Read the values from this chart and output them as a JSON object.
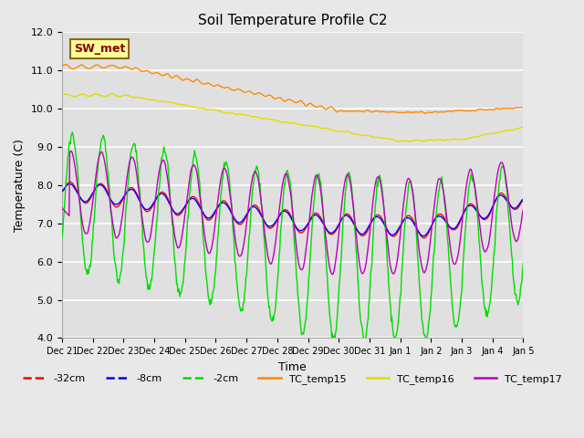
{
  "title": "Soil Temperature Profile C2",
  "xlabel": "Time",
  "ylabel": "Temperature (C)",
  "ylim": [
    4.0,
    12.0
  ],
  "yticks": [
    4.0,
    5.0,
    6.0,
    7.0,
    8.0,
    9.0,
    10.0,
    11.0,
    12.0
  ],
  "xtick_labels": [
    "Dec 21",
    "Dec 22",
    "Dec 23",
    "Dec 24",
    "Dec 25",
    "Dec 26",
    "Dec 27",
    "Dec 28",
    "Dec 29",
    "Dec 30",
    "Dec 31",
    "Jan 1",
    "Jan 2",
    "Jan 3",
    "Jan 4",
    "Jan 5"
  ],
  "legend_labels": [
    "-32cm",
    "-8cm",
    "-2cm",
    "TC_temp15",
    "TC_temp16",
    "TC_temp17"
  ],
  "line_colors": [
    "#ff0000",
    "#0000ff",
    "#00dd00",
    "#ff8800",
    "#dddd00",
    "#bb00bb"
  ],
  "annotation_text": "SW_met",
  "annotation_color": "#8b0000",
  "annotation_bg": "#ffff99",
  "annotation_border": "#8b6914",
  "fig_bg": "#e8e8e8",
  "plot_bg": "#e0e0e0",
  "grid_color": "#ffffff"
}
